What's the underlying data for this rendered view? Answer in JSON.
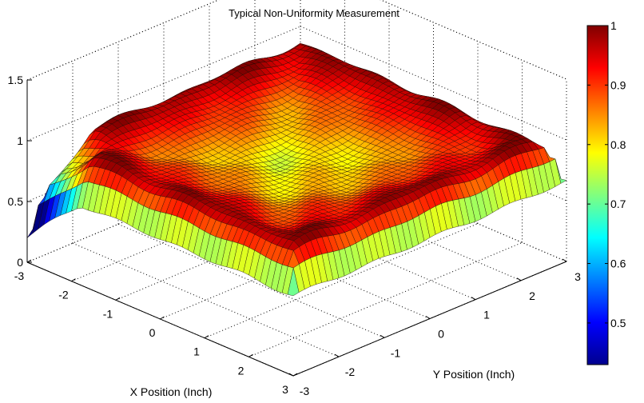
{
  "chart_data": {
    "type": "surface",
    "title": "Typical Non-Uniformity Measurement",
    "xlabel": "X Position (Inch)",
    "ylabel": "Y Position (Inch)",
    "zlabel": "",
    "x_ticks": [
      "-3",
      "-2",
      "-1",
      "0",
      "1",
      "2",
      "3"
    ],
    "y_ticks": [
      "-3",
      "-2",
      "-1",
      "0",
      "1",
      "2",
      "3"
    ],
    "z_ticks": [
      "0",
      "0.5",
      "1",
      "1.5"
    ],
    "xlim": [
      -3,
      3
    ],
    "ylim": [
      -3,
      3
    ],
    "zlim": [
      0,
      1.5
    ],
    "colorbar": {
      "min": 0.43,
      "max": 1,
      "ticks": [
        "0.5",
        "0.6",
        "0.7",
        "0.8",
        "0.9",
        "1"
      ],
      "colormap": "jet"
    },
    "grid": true,
    "surface_description_values": {
      "corner_value_low": 0.45,
      "center_value": 0.78,
      "plateau_value": 0.95,
      "edge_peak_value": 1.0
    }
  }
}
